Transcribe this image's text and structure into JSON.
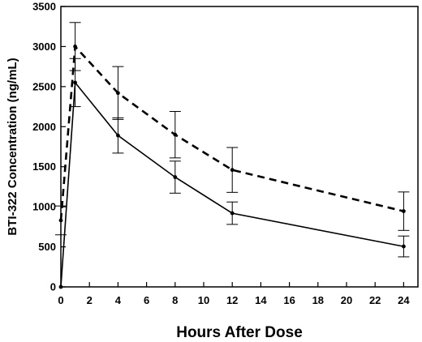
{
  "chart_data": {
    "type": "line",
    "title": "",
    "xlabel": "Hours After Dose",
    "ylabel": "BTI-322 Concentration (ng/mL)",
    "xlim": [
      0,
      25
    ],
    "ylim": [
      0,
      3500
    ],
    "xticks": [
      0,
      2,
      4,
      6,
      8,
      10,
      12,
      14,
      16,
      18,
      20,
      22,
      24
    ],
    "yticks": [
      0,
      500,
      1000,
      1500,
      2000,
      2500,
      3000,
      3500
    ],
    "grid": false,
    "legend": "none",
    "series": [
      {
        "style": "dashed",
        "color": "#000000",
        "x": [
          0,
          1,
          4,
          8,
          12,
          24
        ],
        "y": [
          830,
          3000,
          2420,
          1900,
          1460,
          945
        ],
        "err": [
          180,
          300,
          330,
          290,
          280,
          240
        ]
      },
      {
        "style": "solid",
        "color": "#000000",
        "x": [
          0,
          1,
          4,
          8,
          12,
          24
        ],
        "y": [
          0,
          2550,
          1890,
          1370,
          920,
          505
        ],
        "err": [
          0,
          300,
          220,
          200,
          140,
          130
        ]
      }
    ]
  }
}
